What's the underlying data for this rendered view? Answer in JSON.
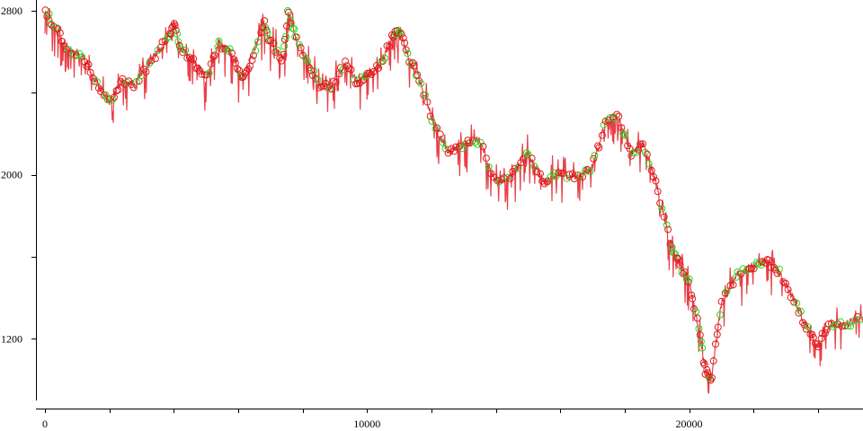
{
  "chart_data": {
    "type": "line",
    "title": "",
    "xlabel": "",
    "ylabel": "",
    "xlim": [
      0,
      25400
    ],
    "ylim": [
      900,
      2830
    ],
    "x_ticks": [
      0,
      2000,
      4000,
      6000,
      8000,
      10000,
      12000,
      14000,
      16000,
      18000,
      20000,
      22000,
      24000
    ],
    "x_tick_labels": [
      {
        "value": 0,
        "label": "0"
      },
      {
        "value": 10000,
        "label": "10000"
      },
      {
        "value": 20000,
        "label": "20000"
      }
    ],
    "y_ticks": [
      1200,
      1600,
      2000,
      2400,
      2800
    ],
    "y_tick_labels": [
      {
        "value": 2800,
        "label": "2800"
      },
      {
        "value": 2000,
        "label": "2000"
      },
      {
        "value": 1200,
        "label": "1200"
      }
    ],
    "grid": false,
    "legend": "none",
    "series": [
      {
        "color": "#e8404a",
        "x": [
          0,
          300,
          700,
          1200,
          1600,
          2000,
          2400,
          2800,
          3300,
          3800,
          4000,
          4200,
          4600,
          5000,
          5400,
          5800,
          6100,
          6400,
          6800,
          7000,
          7400,
          7550,
          7800,
          8200,
          8500,
          8900,
          9300,
          9700,
          10000,
          10400,
          10800,
          11000,
          11300,
          11600,
          12000,
          12500,
          13000,
          13500,
          14000,
          14500,
          15000,
          15500,
          16000,
          16500,
          17000,
          17400,
          17800,
          18200,
          18600,
          19000,
          19400,
          19700,
          20000,
          20300,
          20500,
          20700,
          21000,
          21500,
          22000,
          22400,
          22800,
          23300,
          23700,
          24000,
          24400,
          24800,
          25400
        ],
        "y": [
          2800,
          2720,
          2620,
          2570,
          2450,
          2350,
          2460,
          2440,
          2560,
          2660,
          2740,
          2620,
          2560,
          2460,
          2640,
          2590,
          2460,
          2560,
          2740,
          2650,
          2560,
          2800,
          2660,
          2540,
          2440,
          2430,
          2540,
          2450,
          2490,
          2530,
          2680,
          2720,
          2560,
          2480,
          2280,
          2110,
          2150,
          2170,
          1960,
          2000,
          2110,
          1960,
          2010,
          1980,
          2040,
          2260,
          2290,
          2100,
          2150,
          1940,
          1680,
          1560,
          1480,
          1250,
          1040,
          1010,
          1370,
          1510,
          1560,
          1580,
          1520,
          1380,
          1240,
          1170,
          1280,
          1270,
          1300
        ]
      }
    ],
    "markers": [
      {
        "name": "",
        "color": "#dd1c1c",
        "style": "circle"
      },
      {
        "name": "",
        "color": "#22dd22",
        "style": "circle"
      }
    ]
  }
}
